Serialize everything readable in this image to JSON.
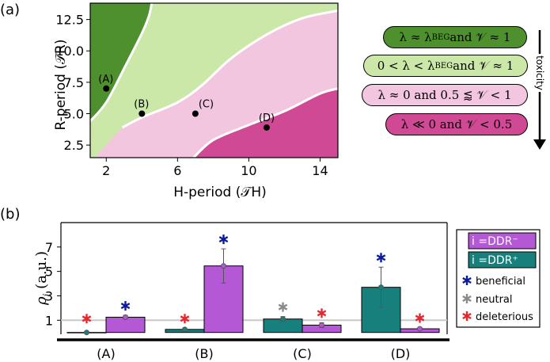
{
  "panel_a": {
    "label": "(a)",
    "xlabel": "H-period (𝒯H)",
    "ylabel": "R-period (𝒯R)",
    "xticks": [
      "2",
      "6",
      "10",
      "14"
    ],
    "yticks": [
      "2.5",
      "5.0",
      "7.5",
      "10.0",
      "12.5"
    ],
    "colors": {
      "dark_green": "#4e8f2e",
      "light_green": "#cbe8a9",
      "light_pink": "#f3c6df",
      "dark_pink": "#cf4994"
    }
  },
  "legend_a": {
    "items": [
      {
        "lhs": "λ ≈ λ",
        "sub": "BEG",
        "rhs": " and 𝒱 ≈ 1",
        "color": "#4e8f2e"
      },
      {
        "lhs": "0 < λ < λ",
        "sub": "BEG",
        "rhs": " and 𝒱 ≈ 1",
        "color": "#cbe8a9"
      },
      {
        "lhs": "λ ≈ 0 and 0.5 ⪅ 𝒱 < 1",
        "sub": "",
        "rhs": "",
        "color": "#f3c6df"
      },
      {
        "lhs": "λ ≪ 0 and 𝒱 < 0.5",
        "sub": "",
        "rhs": "",
        "color": "#cf4994"
      }
    ],
    "arrow_label": "toxicity"
  },
  "chart_data": [
    {
      "type": "scatter",
      "panel": "(a)",
      "title": "",
      "xlabel": "H-period (𝒯H)",
      "ylabel": "R-period (𝒯R)",
      "xlim": [
        1.1,
        15.0
      ],
      "ylim": [
        1.5,
        13.8
      ],
      "points": [
        {
          "label": "(A)",
          "x": 2,
          "y": 7.0
        },
        {
          "label": "(B)",
          "x": 4,
          "y": 5.0
        },
        {
          "label": "(C)",
          "x": 7,
          "y": 5.0
        },
        {
          "label": "(D)",
          "x": 11,
          "y": 3.9
        }
      ],
      "regions": [
        {
          "name": "λ ≈ λBEG and 𝒱 ≈ 1",
          "color": "#4e8f2e"
        },
        {
          "name": "0 < λ < λBEG and 𝒱 ≈ 1",
          "color": "#cbe8a9"
        },
        {
          "name": "λ ≈ 0 and 0.5 ⪅ 𝒱 < 1",
          "color": "#f3c6df"
        },
        {
          "name": "λ ≪ 0 and 𝒱 < 0.5",
          "color": "#cf4994"
        }
      ],
      "boundaries": [
        {
          "between": "dark green / light green",
          "points": [
            [
              1.1,
              4.4
            ],
            [
              2.0,
              5.9
            ],
            [
              3.0,
              8.6
            ],
            [
              4.0,
              11.4
            ],
            [
              4.4,
              12.8
            ],
            [
              4.55,
              13.8
            ]
          ]
        },
        {
          "between": "light green / light pink",
          "points": [
            [
              2.9,
              3.9
            ],
            [
              4.0,
              4.7
            ],
            [
              6.0,
              5.9
            ],
            [
              7.4,
              7.3
            ],
            [
              9.0,
              9.4
            ],
            [
              11.0,
              11.3
            ],
            [
              13.0,
              12.6
            ],
            [
              15.0,
              13.2
            ]
          ]
        },
        {
          "between": "light pink / dark pink",
          "points": [
            [
              6.9,
              1.5
            ],
            [
              8.0,
              2.9
            ],
            [
              10.0,
              4.1
            ],
            [
              12.0,
              5.2
            ],
            [
              14.0,
              6.6
            ],
            [
              15.0,
              7.0
            ]
          ]
        }
      ]
    },
    {
      "type": "bar",
      "panel": "(b)",
      "title": "",
      "xlabel": "",
      "ylabel": "ρi (a.u.)",
      "ylim": [
        -0.15,
        9.0
      ],
      "yticks": [
        1,
        3,
        5,
        7
      ],
      "reference_line": 1,
      "categories": [
        "(A)",
        "(B)",
        "(C)",
        "(D)"
      ],
      "series": [
        {
          "name": "i = DDR⁺",
          "color": "#17807d",
          "values": [
            0.0,
            0.25,
            1.1,
            3.7
          ],
          "errors": [
            0.0,
            0.0,
            0.2,
            1.65
          ],
          "markers": [
            "deleterious",
            "deleterious",
            "neutral",
            "beneficial"
          ]
        },
        {
          "name": "i = DDR⁻",
          "color": "#b458d6",
          "values": [
            1.25,
            5.45,
            0.6,
            0.3
          ],
          "errors": [
            0.15,
            1.4,
            0.2,
            0.1
          ],
          "markers": [
            "beneficial",
            "beneficial",
            "deleterious",
            "deleterious"
          ]
        }
      ],
      "marker_legend": [
        {
          "name": "beneficial",
          "color": "#0c1b9a"
        },
        {
          "name": "neutral",
          "color": "#8a8a8a"
        },
        {
          "name": "deleterious",
          "color": "#e8262b"
        }
      ]
    }
  ],
  "panel_b": {
    "label": "(b)",
    "ylabel_sym": "ρ",
    "ylabel_sub": "i",
    "ylabel_unit": " (a.u.)",
    "legend": {
      "ddr_minus": "i =DDR⁻",
      "ddr_plus": "i =DDR⁺",
      "beneficial": "beneficial",
      "neutral": "neutral",
      "deleterious": "deleterious"
    },
    "colors": {
      "ddr_plus": "#17807d",
      "ddr_minus": "#b458d6",
      "beneficial": "#0c1b9a",
      "neutral": "#8a8a8a",
      "deleterious": "#e8262b"
    }
  }
}
